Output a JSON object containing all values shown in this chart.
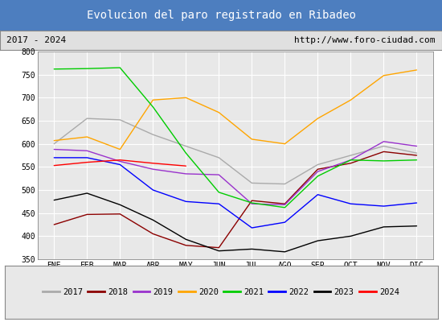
{
  "title": "Evolucion del paro registrado en Ribadeo",
  "subtitle_left": "2017 - 2024",
  "subtitle_right": "http://www.foro-ciudad.com",
  "title_bg_color": "#4d7ebf",
  "title_text_color": "#ffffff",
  "subtitle_bg_color": "#e0e0e0",
  "subtitle_text_color": "#000000",
  "plot_bg_color": "#e8e8e8",
  "months": [
    "ENE",
    "FEB",
    "MAR",
    "ABR",
    "MAY",
    "JUN",
    "JUL",
    "AGO",
    "SEP",
    "OCT",
    "NOV",
    "DIC"
  ],
  "ylim": [
    350,
    800
  ],
  "yticks": [
    350,
    400,
    450,
    500,
    550,
    600,
    650,
    700,
    750,
    800
  ],
  "series": [
    {
      "label": "2017",
      "color": "#aaaaaa",
      "linewidth": 1.0,
      "data": [
        600,
        655,
        652,
        620,
        595,
        570,
        515,
        513,
        555,
        575,
        595,
        580
      ]
    },
    {
      "label": "2018",
      "color": "#8b0000",
      "linewidth": 1.0,
      "data": [
        425,
        447,
        448,
        405,
        380,
        375,
        477,
        470,
        545,
        558,
        583,
        575
      ]
    },
    {
      "label": "2019",
      "color": "#9932cc",
      "linewidth": 1.0,
      "data": [
        588,
        585,
        562,
        545,
        535,
        533,
        470,
        468,
        540,
        565,
        605,
        595
      ]
    },
    {
      "label": "2020",
      "color": "#ffa500",
      "linewidth": 1.0,
      "data": [
        607,
        615,
        588,
        695,
        700,
        668,
        610,
        600,
        655,
        695,
        748,
        760
      ]
    },
    {
      "label": "2021",
      "color": "#00cc00",
      "linewidth": 1.0,
      "data": [
        762,
        763,
        765,
        680,
        580,
        495,
        472,
        462,
        530,
        565,
        563,
        565
      ]
    },
    {
      "label": "2022",
      "color": "#0000ff",
      "linewidth": 1.0,
      "data": [
        570,
        570,
        555,
        500,
        475,
        470,
        418,
        430,
        490,
        470,
        465,
        472
      ]
    },
    {
      "label": "2023",
      "color": "#000000",
      "linewidth": 1.0,
      "data": [
        478,
        493,
        468,
        435,
        393,
        368,
        372,
        366,
        390,
        400,
        420,
        422
      ]
    },
    {
      "label": "2024",
      "color": "#ff0000",
      "linewidth": 1.0,
      "data": [
        553,
        560,
        565,
        558,
        552,
        null,
        null,
        null,
        null,
        null,
        null,
        null
      ]
    }
  ],
  "legend_bg_color": "#e8e8e8",
  "grid_color": "#ffffff",
  "grid_linewidth": 0.8
}
